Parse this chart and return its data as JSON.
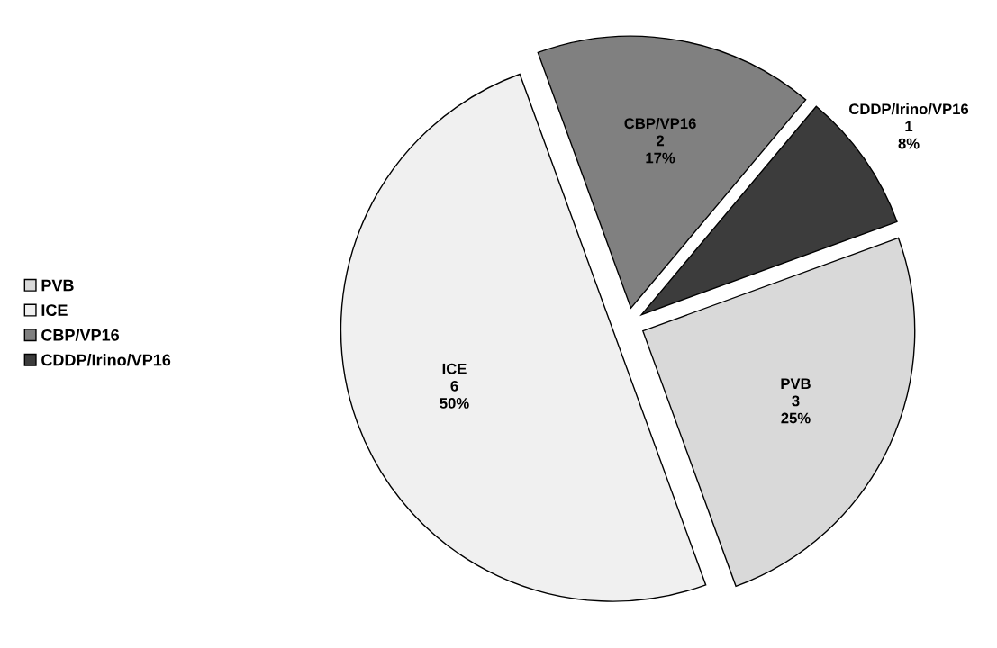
{
  "chart_data": {
    "type": "pie",
    "categories": [
      "PVB",
      "ICE",
      "CBP/VP16",
      "CDDP/Irino/VP16"
    ],
    "values": [
      3,
      6,
      2,
      1
    ],
    "value_labels": [
      "3\n25%",
      "6\n50%",
      "2\n17%",
      "1\n8%"
    ],
    "colors": [
      "#d9d9d9",
      "#f0f0f0",
      "#808080",
      "#3c3c3c"
    ],
    "legend": "left"
  }
}
